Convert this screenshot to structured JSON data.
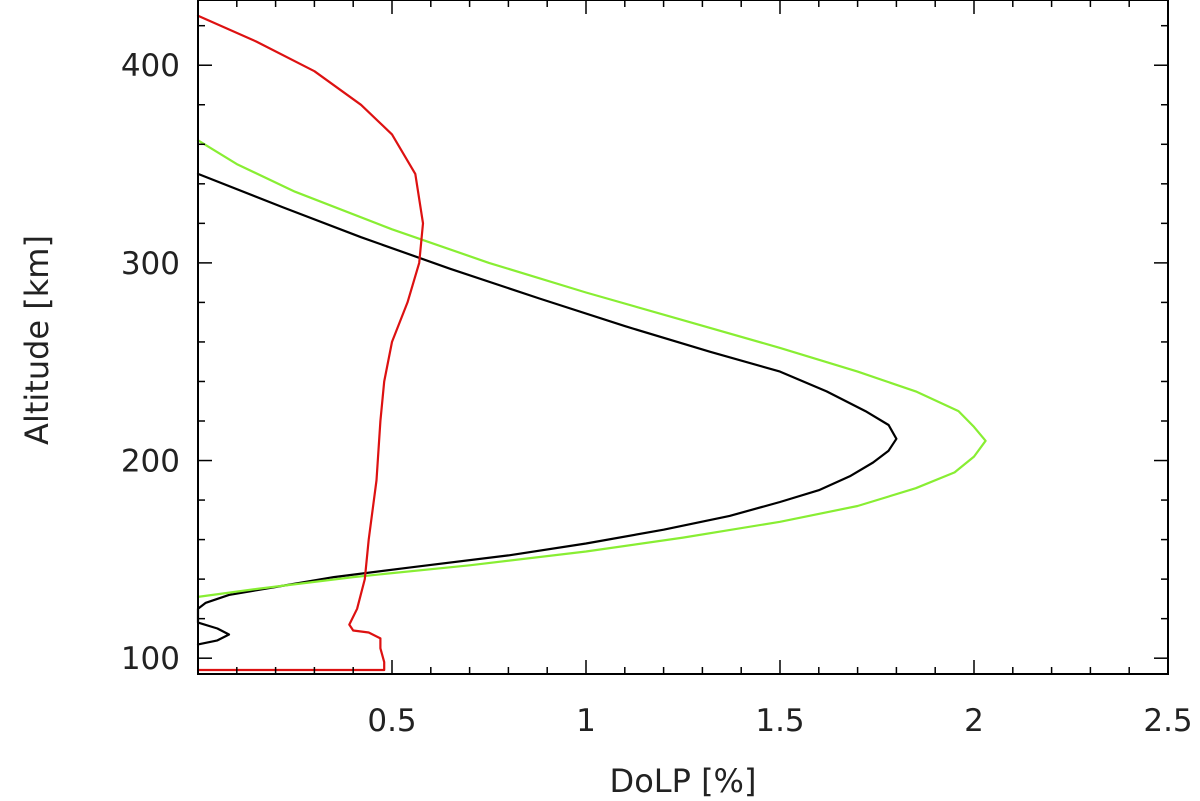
{
  "chart_data": {
    "type": "line",
    "xlabel": "DoLP [%]",
    "ylabel": "Altitude [km]",
    "xlim": [
      0,
      2.5
    ],
    "ylim": [
      92,
      433
    ],
    "x_ticks": [
      0.5,
      1,
      1.5,
      2,
      2.5
    ],
    "x_tick_labels": [
      "0.5",
      "1",
      "1.5",
      "2",
      "2.5"
    ],
    "y_ticks": [
      100,
      200,
      300,
      400
    ],
    "y_tick_labels": [
      "100",
      "200",
      "300",
      "400"
    ],
    "x_minor_step": 0.1,
    "y_minor_step": 20,
    "grid": false,
    "series": [
      {
        "color": "#000000",
        "points": [
          [
            0.0,
            107
          ],
          [
            0.05,
            109
          ],
          [
            0.08,
            112
          ],
          [
            0.05,
            115
          ],
          [
            0.0,
            118
          ],
          [
            0.0,
            121
          ],
          [
            0.0,
            125
          ],
          [
            0.02,
            128
          ],
          [
            0.08,
            132
          ],
          [
            0.2,
            136
          ],
          [
            0.35,
            141
          ],
          [
            0.55,
            146
          ],
          [
            0.8,
            152
          ],
          [
            1.0,
            158
          ],
          [
            1.2,
            165
          ],
          [
            1.37,
            172
          ],
          [
            1.5,
            179
          ],
          [
            1.6,
            185
          ],
          [
            1.68,
            192
          ],
          [
            1.74,
            199
          ],
          [
            1.78,
            205
          ],
          [
            1.8,
            211
          ],
          [
            1.78,
            218
          ],
          [
            1.72,
            225
          ],
          [
            1.62,
            235
          ],
          [
            1.5,
            245
          ],
          [
            1.32,
            255
          ],
          [
            1.1,
            268
          ],
          [
            0.88,
            282
          ],
          [
            0.65,
            297
          ],
          [
            0.42,
            313
          ],
          [
            0.22,
            328
          ],
          [
            0.0,
            345
          ]
        ]
      },
      {
        "color": "#88ee33",
        "points": [
          [
            0.0,
            131
          ],
          [
            0.15,
            135
          ],
          [
            0.4,
            141
          ],
          [
            0.7,
            147
          ],
          [
            1.0,
            154
          ],
          [
            1.25,
            161
          ],
          [
            1.5,
            169
          ],
          [
            1.7,
            177
          ],
          [
            1.85,
            186
          ],
          [
            1.95,
            194
          ],
          [
            2.0,
            202
          ],
          [
            2.03,
            210
          ],
          [
            2.0,
            217
          ],
          [
            1.96,
            225
          ],
          [
            1.85,
            235
          ],
          [
            1.7,
            245
          ],
          [
            1.5,
            257
          ],
          [
            1.25,
            271
          ],
          [
            1.0,
            285
          ],
          [
            0.75,
            300
          ],
          [
            0.5,
            317
          ],
          [
            0.25,
            336
          ],
          [
            0.1,
            350
          ],
          [
            0.0,
            362
          ]
        ]
      },
      {
        "color": "#dd1111",
        "points": [
          [
            0.48,
            94
          ],
          [
            0.0,
            94
          ],
          [
            0.48,
            94
          ],
          [
            0.48,
            98
          ],
          [
            0.47,
            105
          ],
          [
            0.47,
            110
          ],
          [
            0.44,
            113
          ],
          [
            0.4,
            114
          ],
          [
            0.39,
            117
          ],
          [
            0.41,
            125
          ],
          [
            0.43,
            140
          ],
          [
            0.44,
            160
          ],
          [
            0.46,
            190
          ],
          [
            0.47,
            220
          ],
          [
            0.48,
            240
          ],
          [
            0.5,
            260
          ],
          [
            0.54,
            280
          ],
          [
            0.57,
            300
          ],
          [
            0.58,
            320
          ],
          [
            0.56,
            345
          ],
          [
            0.5,
            365
          ],
          [
            0.42,
            380
          ],
          [
            0.3,
            397
          ],
          [
            0.15,
            412
          ],
          [
            0.0,
            425
          ]
        ]
      }
    ]
  }
}
